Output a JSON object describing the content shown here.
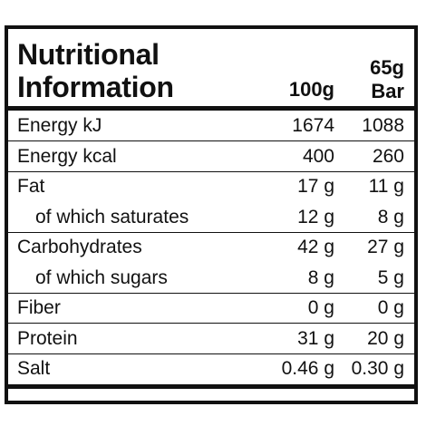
{
  "title": {
    "line1": "Nutritional",
    "line2": "Information"
  },
  "columns": {
    "per_100g": "100g",
    "per_bar_line1": "65g",
    "per_bar_line2": "Bar"
  },
  "rows": [
    {
      "name": "Energy kJ",
      "per_100g": "1674",
      "per_bar": "1088",
      "sub": false
    },
    {
      "name": "Energy kcal",
      "per_100g": "400",
      "per_bar": "260",
      "sub": false
    },
    {
      "name": "Fat",
      "per_100g": "17 g",
      "per_bar": "11 g",
      "sub": false
    },
    {
      "name": "of which saturates",
      "per_100g": "12 g",
      "per_bar": "8 g",
      "sub": true
    },
    {
      "name": "Carbohydrates",
      "per_100g": "42 g",
      "per_bar": "27 g",
      "sub": false
    },
    {
      "name": "of which sugars",
      "per_100g": "8 g",
      "per_bar": "5 g",
      "sub": true
    },
    {
      "name": "Fiber",
      "per_100g": "0 g",
      "per_bar": "0 g",
      "sub": false
    },
    {
      "name": "Protein",
      "per_100g": "31 g",
      "per_bar": "20 g",
      "sub": false
    },
    {
      "name": "Salt",
      "per_100g": "0.46 g",
      "per_bar": "0.30 g",
      "sub": false
    }
  ]
}
